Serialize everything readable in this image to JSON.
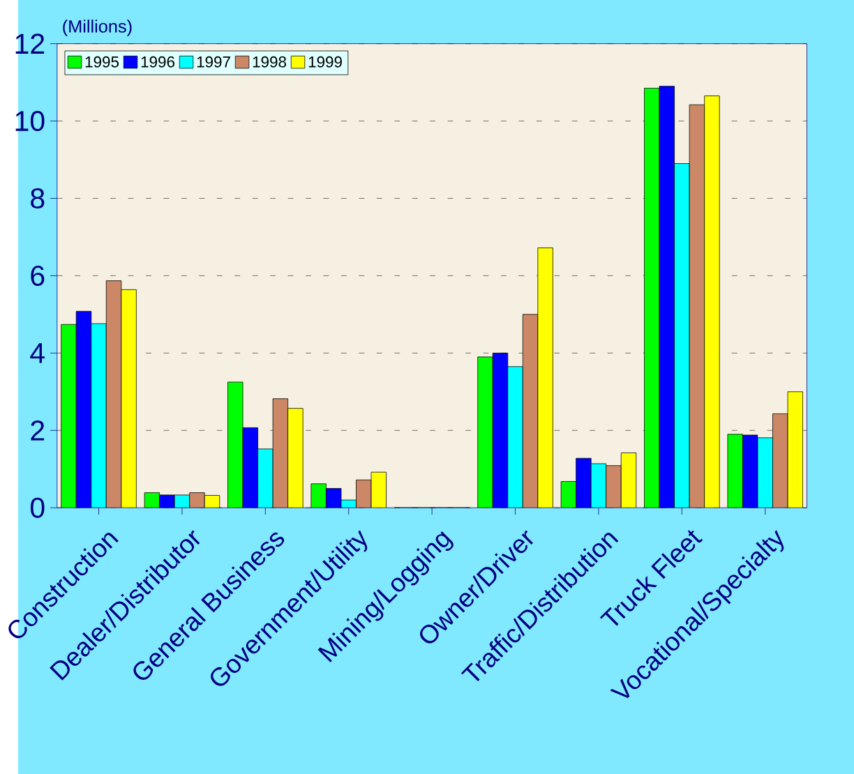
{
  "chart_data": {
    "type": "bar",
    "ylabel": "(Millions)",
    "categories": [
      "Construction",
      "Dealer/Distributor",
      "General Business",
      "Government/Utility",
      "Mining/Logging",
      "Owner/Driver",
      "Traffic/Distribution",
      "Truck Fleet",
      "Vocational/Specialty"
    ],
    "series": [
      {
        "name": "1995",
        "color": "#00ff00",
        "values": [
          4.74,
          0.39,
          3.25,
          0.62,
          0,
          3.9,
          0.68,
          10.85,
          1.9
        ]
      },
      {
        "name": "1996",
        "color": "#0000ff",
        "values": [
          5.08,
          0.33,
          2.07,
          0.5,
          0,
          4.0,
          1.28,
          10.9,
          1.88
        ]
      },
      {
        "name": "1997",
        "color": "#00ffff",
        "values": [
          4.76,
          0.33,
          1.52,
          0.2,
          0,
          3.65,
          1.14,
          8.9,
          1.81
        ]
      },
      {
        "name": "1998",
        "color": "#cc8866",
        "values": [
          5.87,
          0.39,
          2.82,
          0.72,
          0,
          5.0,
          1.09,
          10.42,
          2.43
        ]
      },
      {
        "name": "1999",
        "color": "#ffff00",
        "values": [
          5.64,
          0.32,
          2.57,
          0.92,
          0,
          6.72,
          1.42,
          10.65,
          3.0
        ]
      }
    ],
    "ylim": [
      0,
      12
    ],
    "yticks": [
      0,
      2,
      4,
      6,
      8,
      10,
      12
    ],
    "grid": "y",
    "legend": "top left"
  }
}
